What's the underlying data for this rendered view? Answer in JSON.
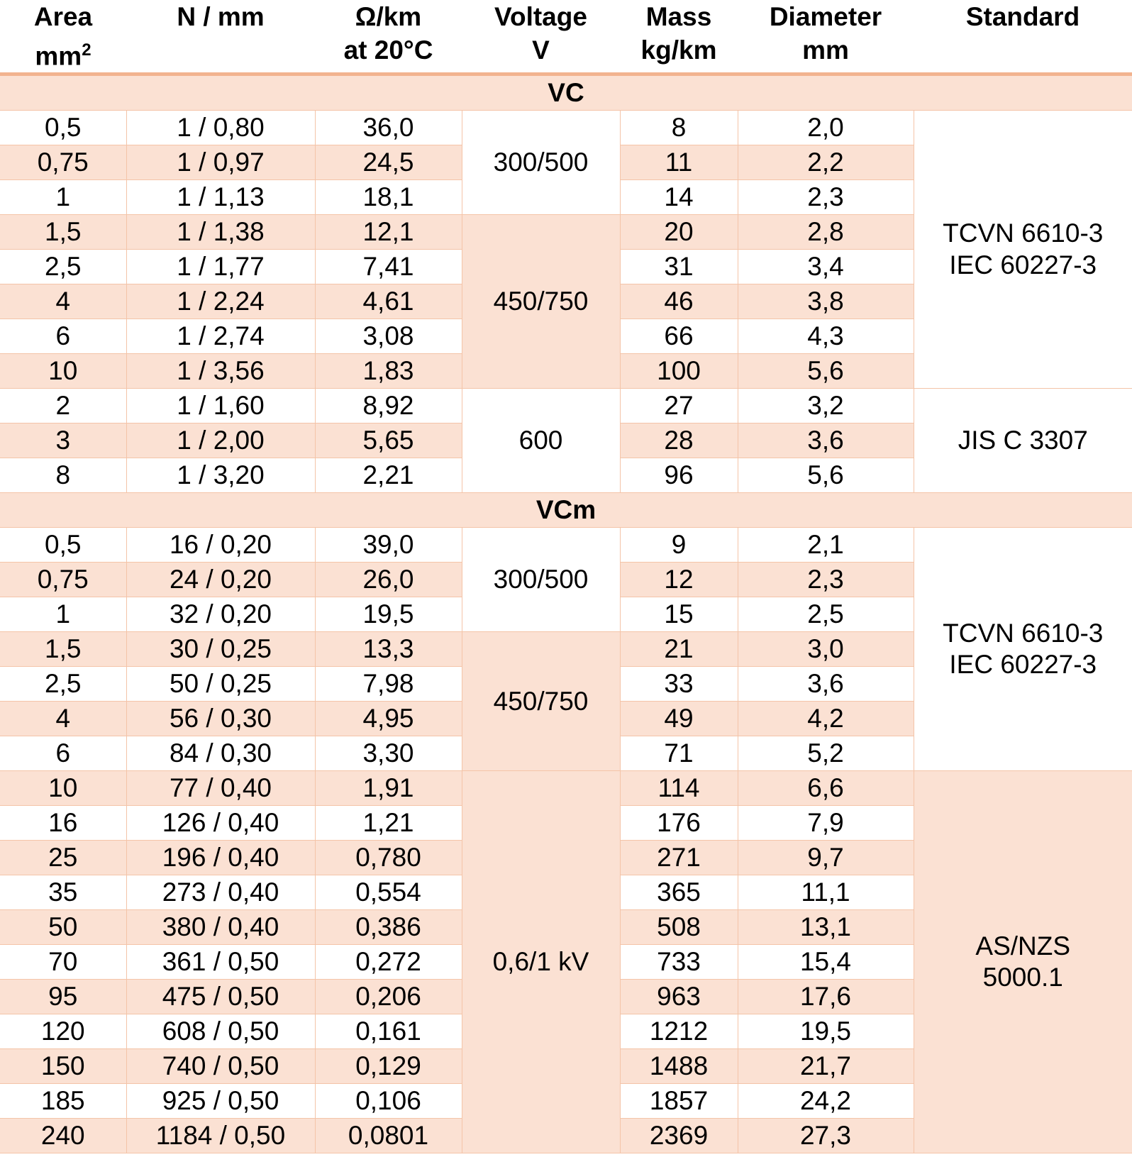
{
  "headers": [
    {
      "line1": "Area",
      "line2": "mm",
      "sup": "2"
    },
    {
      "line1": "N / mm",
      "line2": "",
      "sup": ""
    },
    {
      "line1": "Ω/km",
      "line2": "at 20°C",
      "sup": ""
    },
    {
      "line1": "Voltage",
      "line2": "V",
      "sup": ""
    },
    {
      "line1": "Mass",
      "line2": "kg/km",
      "sup": ""
    },
    {
      "line1": "Diameter",
      "line2": "mm",
      "sup": ""
    },
    {
      "line1": "Standard",
      "line2": "",
      "sup": ""
    }
  ],
  "sections": [
    {
      "name": "VC",
      "rows": [
        [
          "0,5",
          "1 / 0,80",
          "36,0",
          "8",
          "2,0"
        ],
        [
          "0,75",
          "1 / 0,97",
          "24,5",
          "11",
          "2,2"
        ],
        [
          "1",
          "1 / 1,13",
          "18,1",
          "14",
          "2,3"
        ],
        [
          "1,5",
          "1 / 1,38",
          "12,1",
          "20",
          "2,8"
        ],
        [
          "2,5",
          "1 / 1,77",
          "7,41",
          "31",
          "3,4"
        ],
        [
          "4",
          "1 / 2,24",
          "4,61",
          "46",
          "3,8"
        ],
        [
          "6",
          "1 / 2,74",
          "3,08",
          "66",
          "4,3"
        ],
        [
          "10",
          "1 / 3,56",
          "1,83",
          "100",
          "5,6"
        ],
        [
          "2",
          "1 / 1,60",
          "8,92",
          "27",
          "3,2"
        ],
        [
          "3",
          "1 / 2,00",
          "5,65",
          "28",
          "3,6"
        ],
        [
          "8",
          "1 / 3,20",
          "2,21",
          "96",
          "5,6"
        ]
      ],
      "voltage_groups": [
        "300/500",
        "450/750",
        "600"
      ],
      "standard_groups": [
        {
          "line1": "TCVN 6610-3",
          "line2": "IEC 60227-3"
        },
        {
          "line1": "JIS C 3307",
          "line2": ""
        }
      ]
    },
    {
      "name": "VCm",
      "rows": [
        [
          "0,5",
          "16 / 0,20",
          "39,0",
          "9",
          "2,1"
        ],
        [
          "0,75",
          "24 / 0,20",
          "26,0",
          "12",
          "2,3"
        ],
        [
          "1",
          "32 / 0,20",
          "19,5",
          "15",
          "2,5"
        ],
        [
          "1,5",
          "30 / 0,25",
          "13,3",
          "21",
          "3,0"
        ],
        [
          "2,5",
          "50 / 0,25",
          "7,98",
          "33",
          "3,6"
        ],
        [
          "4",
          "56 / 0,30",
          "4,95",
          "49",
          "4,2"
        ],
        [
          "6",
          "84 / 0,30",
          "3,30",
          "71",
          "5,2"
        ],
        [
          "10",
          "77 / 0,40",
          "1,91",
          "114",
          "6,6"
        ],
        [
          "16",
          "126 / 0,40",
          "1,21",
          "176",
          "7,9"
        ],
        [
          "25",
          "196 / 0,40",
          "0,780",
          "271",
          "9,7"
        ],
        [
          "35",
          "273 / 0,40",
          "0,554",
          "365",
          "11,1"
        ],
        [
          "50",
          "380 / 0,40",
          "0,386",
          "508",
          "13,1"
        ],
        [
          "70",
          "361 / 0,50",
          "0,272",
          "733",
          "15,4"
        ],
        [
          "95",
          "475 / 0,50",
          "0,206",
          "963",
          "17,6"
        ],
        [
          "120",
          "608 / 0,50",
          "0,161",
          "1212",
          "19,5"
        ],
        [
          "150",
          "740 / 0,50",
          "0,129",
          "1488",
          "21,7"
        ],
        [
          "185",
          "925 / 0,50",
          "0,106",
          "1857",
          "24,2"
        ],
        [
          "240",
          "1184 / 0,50",
          "0,0801",
          "2369",
          "27,3"
        ]
      ],
      "voltage_groups": [
        "300/500",
        "450/750",
        "0,6/1 kV"
      ],
      "standard_groups": [
        {
          "line1": "TCVN 6610-3",
          "line2": "IEC 60227-3"
        },
        {
          "line1": "AS/NZS",
          "line2": "5000.1"
        }
      ]
    }
  ],
  "colors": {
    "row_tint": "#fbe1d3",
    "grid_line": "#f4c4a8",
    "header_rule": "#f2b38f"
  }
}
